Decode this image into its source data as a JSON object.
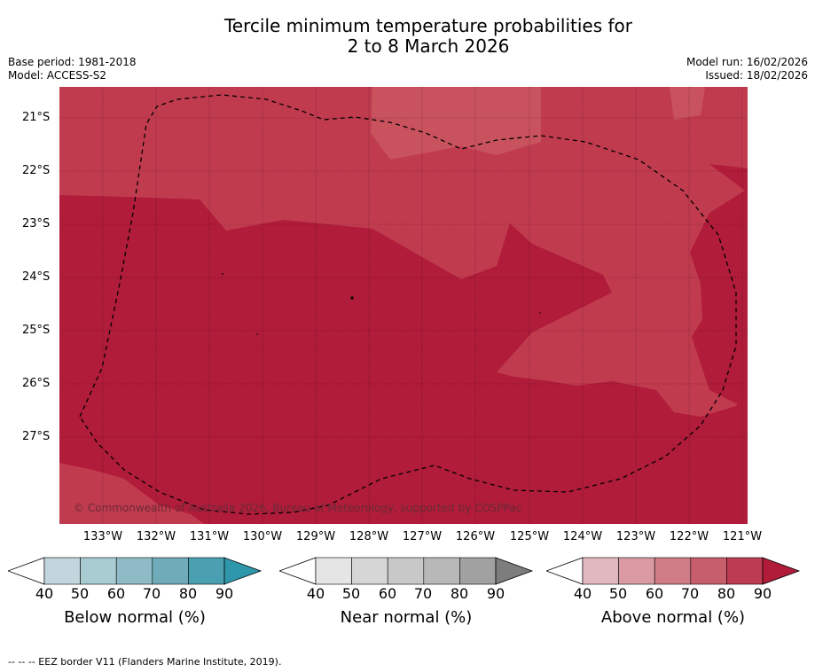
{
  "title_line1": "Tercile minimum temperature probabilities for",
  "title_line2": "2 to 8 March 2026",
  "meta_left": {
    "base_period": "Base period: 1981-2018",
    "model": "Model: ACCESS-S2"
  },
  "meta_right": {
    "model_run": "Model run: 16/02/2026",
    "issued": "Issued: 18/02/2026"
  },
  "latitudes": [
    "21°S",
    "22°S",
    "23°S",
    "24°S",
    "25°S",
    "26°S",
    "27°S"
  ],
  "longitudes": [
    "133°W",
    "132°W",
    "131°W",
    "130°W",
    "129°W",
    "128°W",
    "127°W",
    "126°W",
    "125°W",
    "124°W",
    "123°W",
    "122°W",
    "121°W"
  ],
  "copyright": "© Commonwealth of Australia 2026, Bureau of Meteorology, supported by COSPPac",
  "colorbars": [
    {
      "label": "Below normal (%)",
      "ticks": [
        "40",
        "50",
        "60",
        "70",
        "80",
        "90"
      ],
      "colors": [
        "#c2d7dd",
        "#a9cbd2",
        "#8ebbc6",
        "#6fabb9",
        "#4aa0b1",
        "#2e97ab"
      ]
    },
    {
      "label": "Near normal (%)",
      "ticks": [
        "40",
        "50",
        "60",
        "70",
        "80",
        "90"
      ],
      "colors": [
        "#e5e5e5",
        "#d6d6d6",
        "#c8c8c8",
        "#b8b8b8",
        "#a1a1a1",
        "#7d7d7d"
      ]
    },
    {
      "label": "Above normal (%)",
      "ticks": [
        "40",
        "50",
        "60",
        "70",
        "80",
        "90"
      ],
      "colors": [
        "#e2b8c0",
        "#d99aa4",
        "#d07c87",
        "#c75e6c",
        "#bd3c52",
        "#b01c3a"
      ]
    }
  ],
  "map_colors": {
    "above_70_80": "#c2404f",
    "above_80_90": "#b01c3a",
    "above_60_70": "#c8525e"
  },
  "eez_note": "--  --  -- EEZ border V11 (Flanders Marine Institute, 2019)."
}
